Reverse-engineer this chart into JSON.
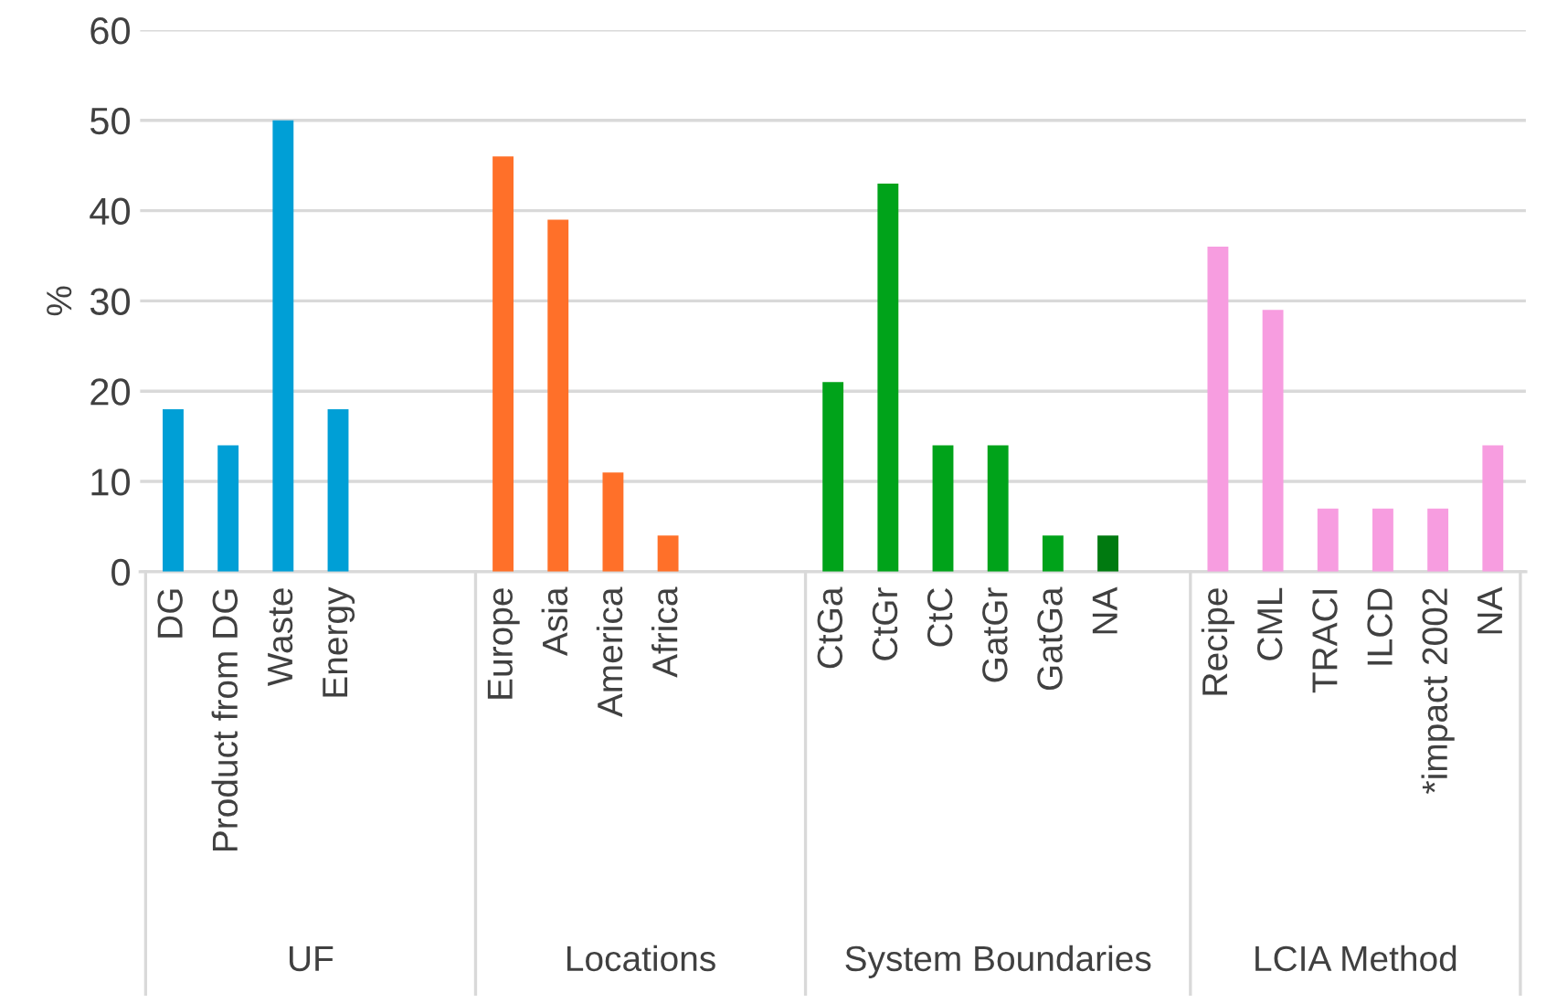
{
  "chart_data": {
    "type": "bar",
    "ylabel": "%",
    "categories": [
      "DG",
      "Product from DG",
      "Waste",
      "Energy",
      null,
      null,
      "Europe",
      "Asia",
      "America",
      "Africa",
      null,
      null,
      "CtGa",
      "CtGr",
      "CtC",
      "GatGr",
      "GatGa",
      "NA",
      null,
      "Recipe",
      "CML",
      "TRACI",
      "ILCD",
      "*impact 2002",
      "NA"
    ],
    "values": [
      18,
      14,
      50,
      18,
      null,
      null,
      46,
      39,
      11,
      4,
      null,
      null,
      21,
      43,
      14,
      14,
      4,
      4,
      null,
      36,
      29,
      7,
      7,
      7,
      14
    ],
    "colors": [
      "#009fd6",
      "#009fd6",
      "#009fd6",
      "#009fd6",
      null,
      null,
      "#ff7029",
      "#ff7029",
      "#ff7029",
      "#ff7029",
      null,
      null,
      "#00a31a",
      "#00a31a",
      "#00a31a",
      "#00a31a",
      "#00a31a",
      "#007a10",
      null,
      "#f79de0",
      "#f79de0",
      "#f79de0",
      "#f79de0",
      "#f79de0",
      "#f79de0"
    ],
    "annotations": [
      "UF",
      "Locations",
      "System Boundaries",
      "LCIA Method"
    ],
    "ylim": [
      0,
      60
    ],
    "yticks": [
      0,
      10,
      20,
      30,
      40,
      50,
      60
    ],
    "grid": "y",
    "legend": false
  }
}
